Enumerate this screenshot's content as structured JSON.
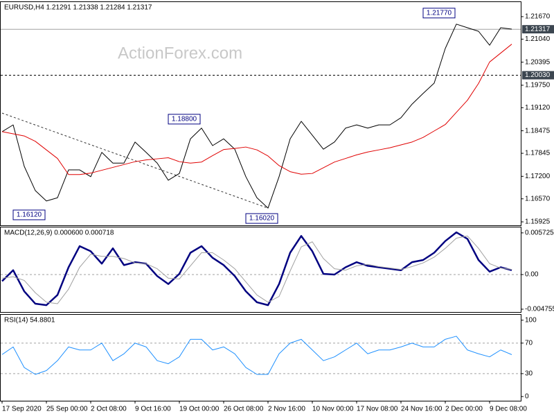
{
  "chart_data": [
    {
      "type": "line",
      "title": "EURUSD,H4  1.21291 1.21338 1.21284 1.21317",
      "watermark": "ActionForex.com",
      "categories": [
        "17 Sep 2020",
        null,
        null,
        null,
        "25 Sep 00:00",
        null,
        null,
        null,
        "2 Oct 08:00",
        null,
        null,
        null,
        "9 Oct 16:00",
        null,
        null,
        null,
        "19 Oct 00:00",
        null,
        null,
        null,
        "26 Oct 08:00",
        null,
        null,
        null,
        "2 Nov 16:00",
        null,
        null,
        null,
        "10 Nov 00:00",
        null,
        null,
        null,
        "17 Nov 08:00",
        null,
        null,
        null,
        "24 Nov 16:00",
        null,
        null,
        null,
        "2 Dec 00:00",
        null,
        null,
        null,
        "9 Dec 08:00",
        null,
        null
      ],
      "series": [
        {
          "color": "#000000",
          "line_width": 1,
          "values": [
            1.1845,
            1.1864,
            1.1748,
            1.168,
            1.1651,
            1.166,
            1.1738,
            1.1738,
            1.1719,
            1.1787,
            1.1757,
            1.1757,
            1.1816,
            1.1787,
            1.1757,
            1.1709,
            1.1728,
            1.1825,
            1.1855,
            1.1806,
            1.1825,
            1.1796,
            1.1719,
            1.166,
            1.1631,
            1.1719,
            1.1825,
            1.1874,
            1.1835,
            1.1796,
            1.1816,
            1.1855,
            1.1864,
            1.1855,
            1.1864,
            1.1864,
            1.1884,
            1.1922,
            1.1952,
            1.1981,
            1.2078,
            1.2146,
            1.2136,
            1.2126,
            1.2087,
            1.2136,
            1.2132
          ]
        },
        {
          "color": "#e00000",
          "line_width": 1,
          "values": [
            1.1845,
            1.1839,
            1.1833,
            1.1818,
            1.1794,
            1.177,
            1.1725,
            1.1725,
            1.1729,
            1.1737,
            1.1745,
            1.1753,
            1.1761,
            1.1766,
            1.1769,
            1.1772,
            1.1761,
            1.1757,
            1.176,
            1.1778,
            1.1795,
            1.1798,
            1.1802,
            1.1794,
            1.1777,
            1.175,
            1.1733,
            1.1726,
            1.1728,
            1.1744,
            1.176,
            1.177,
            1.178,
            1.1788,
            1.1794,
            1.18,
            1.1808,
            1.1816,
            1.1829,
            1.1847,
            1.1865,
            1.1899,
            1.1933,
            1.198,
            1.204,
            1.2065,
            1.209
          ]
        }
      ],
      "ylim": [
        1.15828,
        1.22097
      ],
      "yticks": [
        {
          "value": 1.2167,
          "label": "1.21670"
        },
        {
          "value": 1.2104,
          "label": "1.21040"
        },
        1.20395,
        {
          "value": 1.1975,
          "label": "1.19750"
        },
        {
          "value": 1.1912,
          "label": "1.19120"
        },
        1.18475,
        1.17845,
        {
          "value": 1.172,
          "label": "1.17200"
        },
        {
          "value": 1.1657,
          "label": "1.16570"
        },
        1.15925
      ],
      "hlines": [
        {
          "value": 1.21317,
          "label": "1.21317",
          "style": "solid"
        },
        {
          "value": 1.2003,
          "label": "1.20030",
          "style": "dashed"
        }
      ],
      "annotations": [
        {
          "value": 1.2177,
          "label": "1.21770",
          "index": 41
        },
        {
          "value": 1.188,
          "label": "1.18800",
          "index": 18
        },
        {
          "value": 1.1612,
          "label": "1.16120",
          "index": 4
        },
        {
          "value": 1.1602,
          "label": "1.16020",
          "index": 25
        }
      ],
      "trendline": {
        "from": [
          0,
          1.1897
        ],
        "to": [
          24,
          1.1631
        ]
      }
    },
    {
      "type": "line",
      "title": "MACD(12,26,9) 0.000600 0.000718",
      "series": [
        {
          "color": "#000080",
          "line_width": 2.5,
          "values": [
            -0.0009,
            0.0006,
            -0.0023,
            -0.004,
            -0.0042,
            -0.0028,
            0.001,
            0.0039,
            0.0032,
            0.0015,
            0.0036,
            0.0013,
            0.0017,
            0.0015,
            -0.0002,
            -0.0013,
            0.0001,
            0.003,
            0.0039,
            0.0023,
            0.0013,
            -0.0002,
            -0.0023,
            -0.0038,
            -0.0042,
            -0.0013,
            0.003,
            0.0053,
            0.0032,
            0.0001,
            0.0,
            0.001,
            0.0017,
            0.0012,
            0.001,
            0.0008,
            0.0006,
            0.0017,
            0.002,
            0.003,
            0.0046,
            0.0058,
            0.0049,
            0.002,
            0.0004,
            0.001,
            0.0006
          ]
        },
        {
          "color": "#a0a0a0",
          "line_width": 1,
          "values": [
            -0.0005,
            -0.0003,
            -0.0008,
            -0.0025,
            -0.0038,
            -0.004,
            -0.002,
            0.001,
            0.0028,
            0.0025,
            0.0025,
            0.0022,
            0.0016,
            0.0015,
            0.0008,
            -0.0005,
            -0.0006,
            0.0012,
            0.003,
            0.003,
            0.002,
            0.0008,
            -0.001,
            -0.0028,
            -0.0038,
            -0.003,
            0.0005,
            0.0038,
            0.0045,
            0.0022,
            0.0008,
            0.0006,
            0.0012,
            0.0014,
            0.0011,
            0.0009,
            0.0007,
            0.0011,
            0.0016,
            0.0024,
            0.0036,
            0.005,
            0.0053,
            0.0036,
            0.0015,
            0.0009,
            0.0007
          ]
        }
      ],
      "ylim": [
        -0.00514,
        0.00657
      ],
      "yticks": [
        0.005725,
        {
          "value": 0,
          "label": "0.00"
        },
        -0.004755
      ],
      "levels": [
        0
      ]
    },
    {
      "type": "line",
      "title": "RSI(14) 54.8801",
      "series": [
        {
          "color": "#1e90ff",
          "line_width": 1,
          "values": [
            55,
            65,
            38,
            29,
            34,
            47,
            65,
            61,
            61,
            70,
            47,
            56,
            70,
            65,
            47,
            43,
            52,
            75,
            75,
            61,
            65,
            56,
            38,
            29,
            29,
            56,
            70,
            75,
            61,
            47,
            52,
            61,
            70,
            56,
            61,
            61,
            65,
            70,
            65,
            65,
            75,
            79,
            61,
            56,
            52,
            61,
            54.88
          ]
        }
      ],
      "ylim": [
        -5.5,
        108
      ],
      "yticks": [
        100,
        70,
        30,
        0
      ],
      "levels": [
        70,
        30
      ]
    }
  ]
}
